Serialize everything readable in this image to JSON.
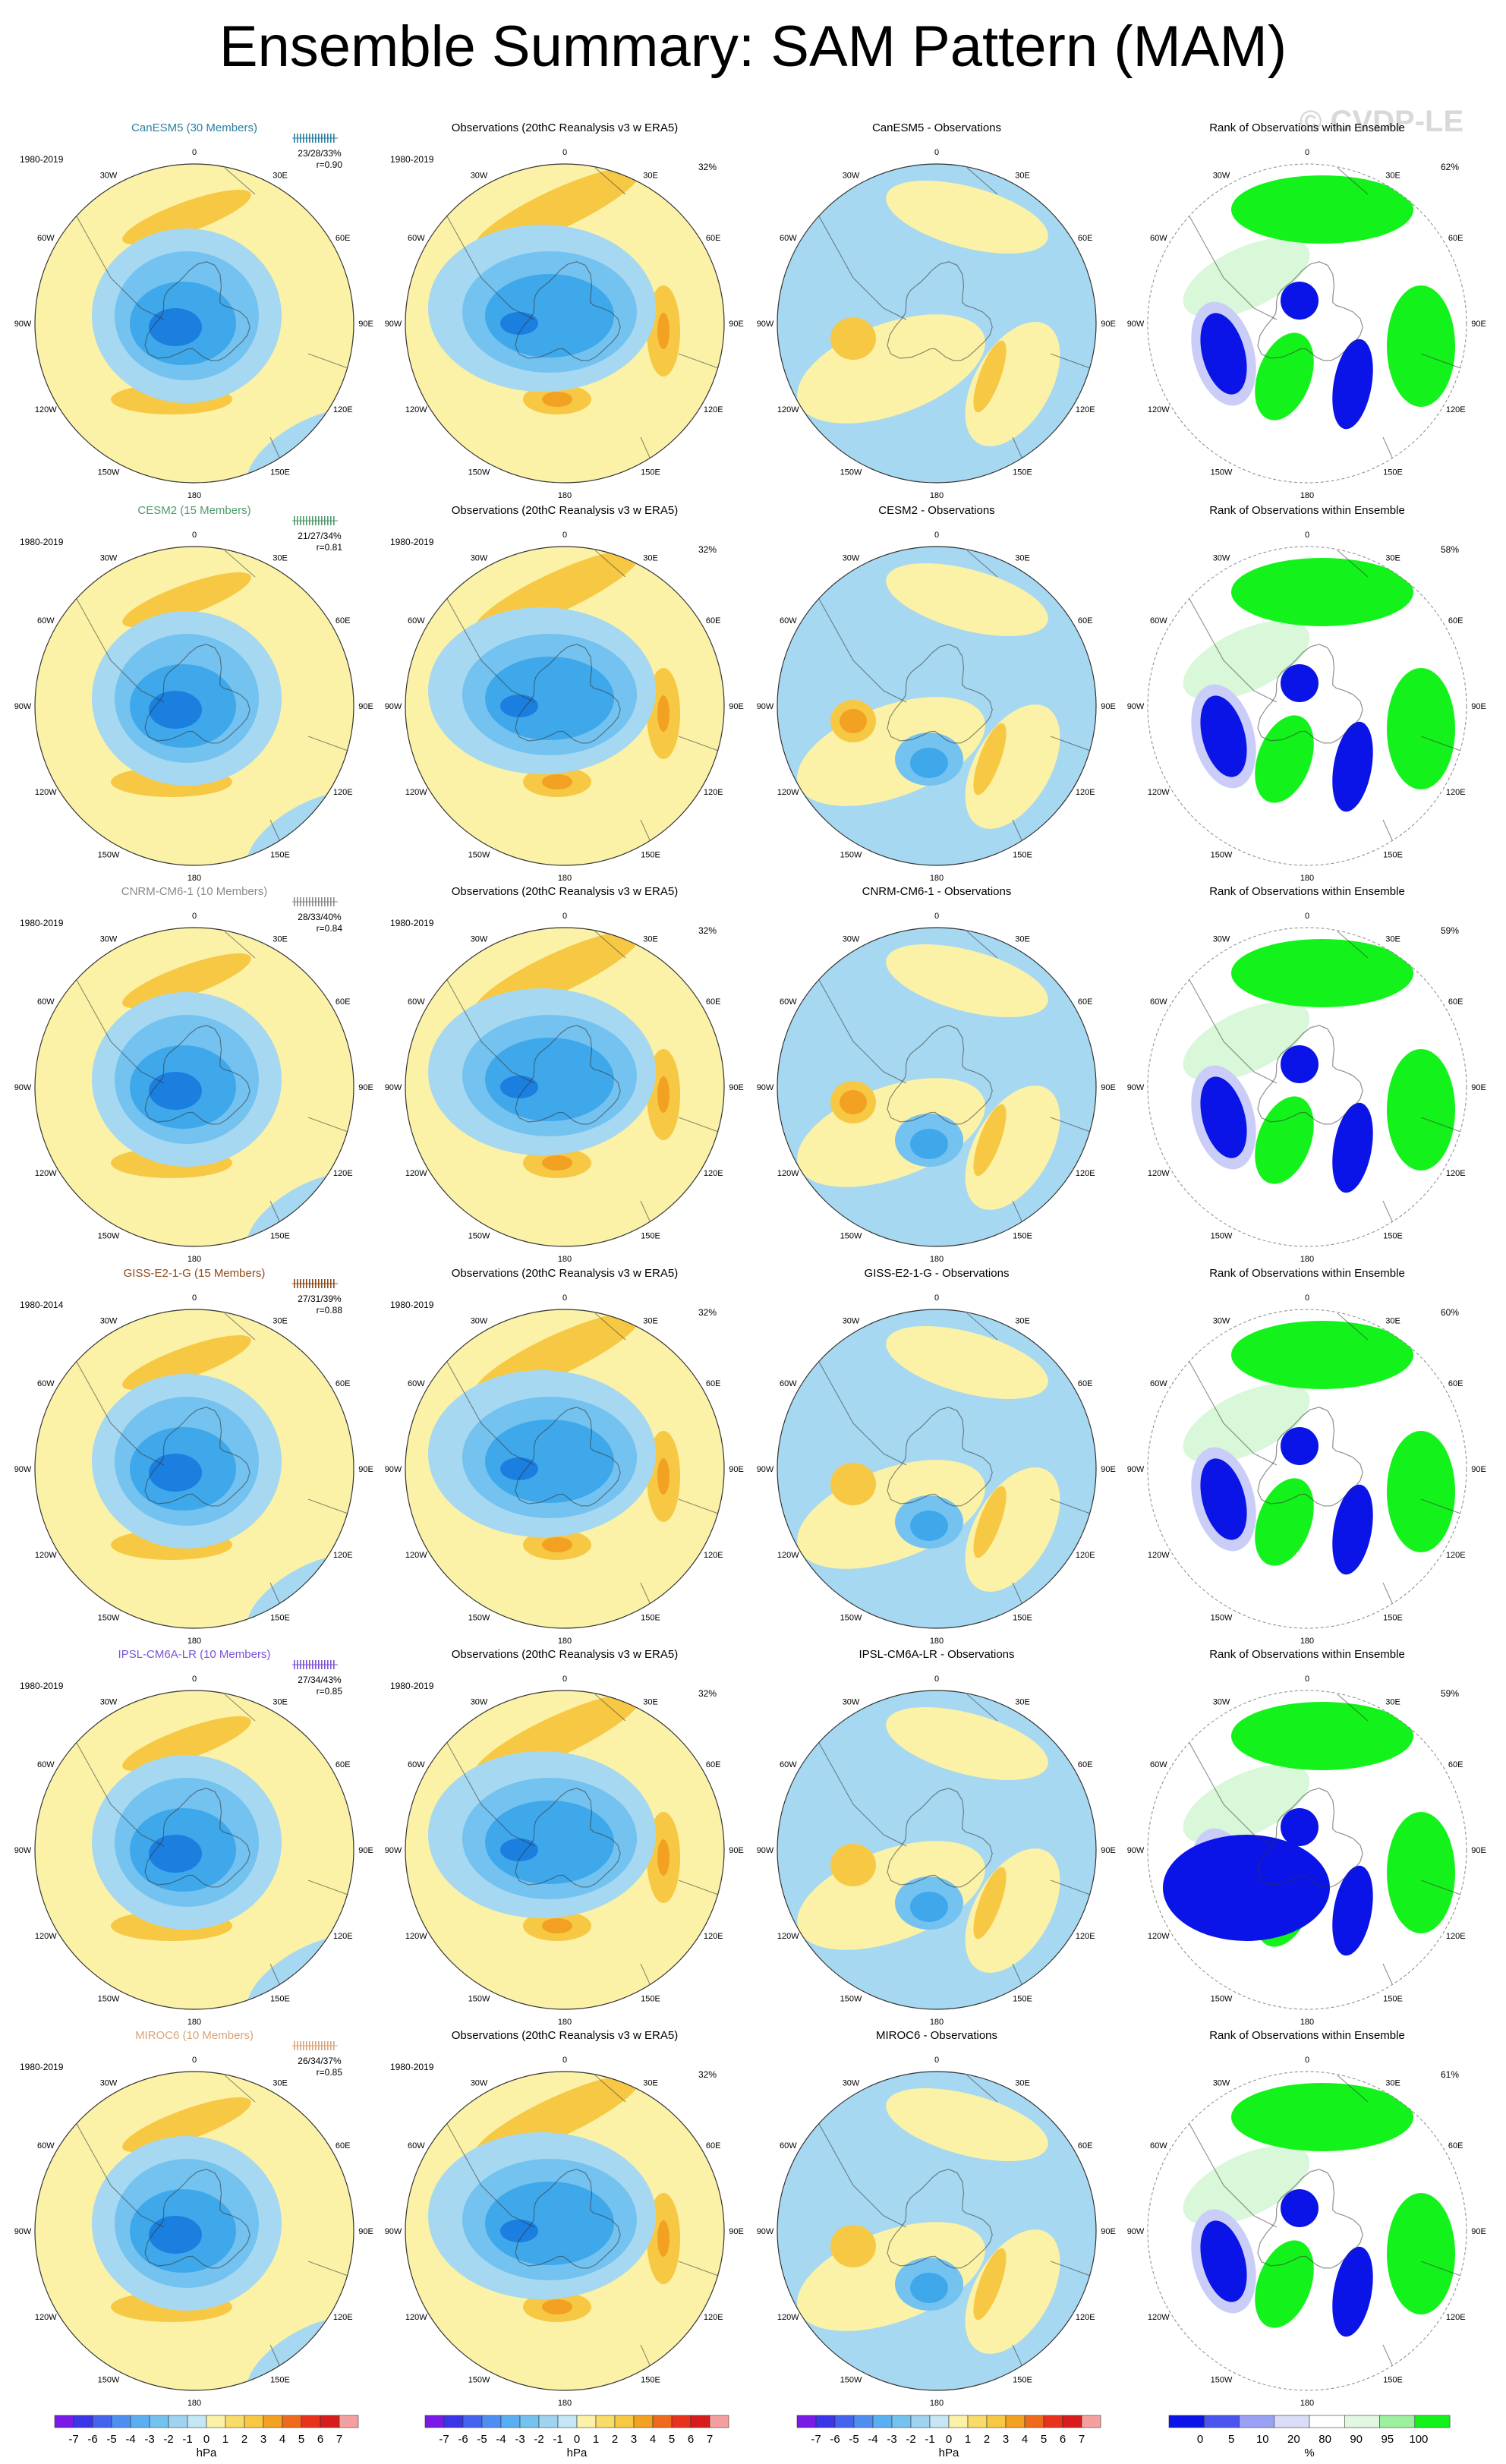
{
  "title": "Ensemble Summary: SAM Pattern (MAM)",
  "watermark": "© CVDP-LE",
  "colors": {
    "land_yellow": "#fbf2a8",
    "light_blue": "#a6d8f1",
    "blue1": "#74c2ef",
    "blue2": "#3fa8ea",
    "blue3": "#1b7fe0",
    "orange1": "#f7c844",
    "orange2": "#f2a122",
    "rank_blue": "#0b14e6",
    "rank_lightblue": "#c9cdf7",
    "rank_green": "#14f21c",
    "rank_lightgreen": "#d9f7d9"
  },
  "lon_labels": [
    "0",
    "30E",
    "60E",
    "90E",
    "120E",
    "150E",
    "180",
    "150W",
    "120W",
    "90W",
    "60W",
    "30W"
  ],
  "column_titles": {
    "observations": "Observations (20thC Reanalysis v3 w ERA5)",
    "difference_suffix": " - Observations",
    "rank": "Rank of Observations within Ensemble"
  },
  "rows": [
    {
      "model": "CanESM5",
      "members": "CanESM5 (30 Members)",
      "color": "#2a7f9f",
      "period": "1980-2019",
      "stats": "23/28/33%",
      "r": "r=0.90",
      "obs_period": "1980-2019",
      "obs_pct": "32%",
      "rank_pct": "62%"
    },
    {
      "model": "CESM2",
      "members": "CESM2 (15 Members)",
      "color": "#4e9a6a",
      "period": "1980-2019",
      "stats": "21/27/34%",
      "r": "r=0.81",
      "obs_period": "1980-2019",
      "obs_pct": "32%",
      "rank_pct": "58%"
    },
    {
      "model": "CNRM-CM6-1",
      "members": "CNRM-CM6-1 (10 Members)",
      "color": "#8a8a8a",
      "period": "1980-2019",
      "stats": "28/33/40%",
      "r": "r=0.84",
      "obs_period": "1980-2019",
      "obs_pct": "32%",
      "rank_pct": "59%"
    },
    {
      "model": "GISS-E2-1-G",
      "members": "GISS-E2-1-G (15 Members)",
      "color": "#8c4a1a",
      "period": "1980-2014",
      "stats": "27/31/39%",
      "r": "r=0.88",
      "obs_period": "1980-2019",
      "obs_pct": "32%",
      "rank_pct": "60%"
    },
    {
      "model": "IPSL-CM6A-LR",
      "members": "IPSL-CM6A-LR (10 Members)",
      "color": "#7b52d6",
      "period": "1980-2019",
      "stats": "27/34/43%",
      "r": "r=0.85",
      "obs_period": "1980-2019",
      "obs_pct": "32%",
      "rank_pct": "59%"
    },
    {
      "model": "MIROC6",
      "members": "MIROC6 (10 Members)",
      "color": "#d8a47a",
      "period": "1980-2019",
      "stats": "26/34/37%",
      "r": "r=0.85",
      "obs_period": "1980-2019",
      "obs_pct": "32%",
      "rank_pct": "61%"
    }
  ],
  "colorbars": [
    {
      "labels": [
        "-7",
        "-6",
        "-5",
        "-4",
        "-3",
        "-2",
        "-1",
        "0",
        "1",
        "2",
        "3",
        "4",
        "5",
        "6",
        "7"
      ],
      "unit": "hPa",
      "colors": [
        "#7a1ae6",
        "#3b35e8",
        "#4463ee",
        "#4f8ff1",
        "#5aaff2",
        "#74c2ef",
        "#9fd3f0",
        "#c4e6f5",
        "#fbf2a8",
        "#f7dc6a",
        "#f7c844",
        "#f2a122",
        "#ee6b1d",
        "#e8321c",
        "#d61c1c",
        "#f5a0a0"
      ]
    },
    {
      "labels": [
        "-7",
        "-6",
        "-5",
        "-4",
        "-3",
        "-2",
        "-1",
        "0",
        "1",
        "2",
        "3",
        "4",
        "5",
        "6",
        "7"
      ],
      "unit": "hPa",
      "colors": [
        "#7a1ae6",
        "#3b35e8",
        "#4463ee",
        "#4f8ff1",
        "#5aaff2",
        "#74c2ef",
        "#9fd3f0",
        "#c4e6f5",
        "#fbf2a8",
        "#f7dc6a",
        "#f7c844",
        "#f2a122",
        "#ee6b1d",
        "#e8321c",
        "#d61c1c",
        "#f5a0a0"
      ]
    },
    {
      "labels": [
        "-7",
        "-6",
        "-5",
        "-4",
        "-3",
        "-2",
        "-1",
        "0",
        "1",
        "2",
        "3",
        "4",
        "5",
        "6",
        "7"
      ],
      "unit": "hPa",
      "colors": [
        "#7a1ae6",
        "#3b35e8",
        "#4463ee",
        "#4f8ff1",
        "#5aaff2",
        "#74c2ef",
        "#9fd3f0",
        "#c4e6f5",
        "#fbf2a8",
        "#f7dc6a",
        "#f7c844",
        "#f2a122",
        "#ee6b1d",
        "#e8321c",
        "#d61c1c",
        "#f5a0a0"
      ]
    },
    {
      "labels": [
        "0",
        "5",
        "10",
        "20",
        "80",
        "90",
        "95",
        "100"
      ],
      "unit": "%",
      "colors": [
        "#0b14e6",
        "#4a55ee",
        "#9aa0f3",
        "#dadcf8",
        "#ffffff",
        "#e1f7e1",
        "#9cf09e",
        "#14f21c"
      ]
    }
  ],
  "chart_data": {
    "type": "heatmap",
    "title": "Ensemble Summary: SAM Pattern (MAM)",
    "projection": "south-polar stereographic",
    "panel_columns": [
      "ensemble mean",
      "observations",
      "difference",
      "rank"
    ],
    "rows": [
      "CanESM5",
      "CESM2",
      "CNRM-CM6-1",
      "GISS-E2-1-G",
      "IPSL-CM6A-LR",
      "MIROC6"
    ],
    "pattern_range_hPa": [
      -7,
      7
    ],
    "rank_range_percent": [
      0,
      100
    ]
  }
}
